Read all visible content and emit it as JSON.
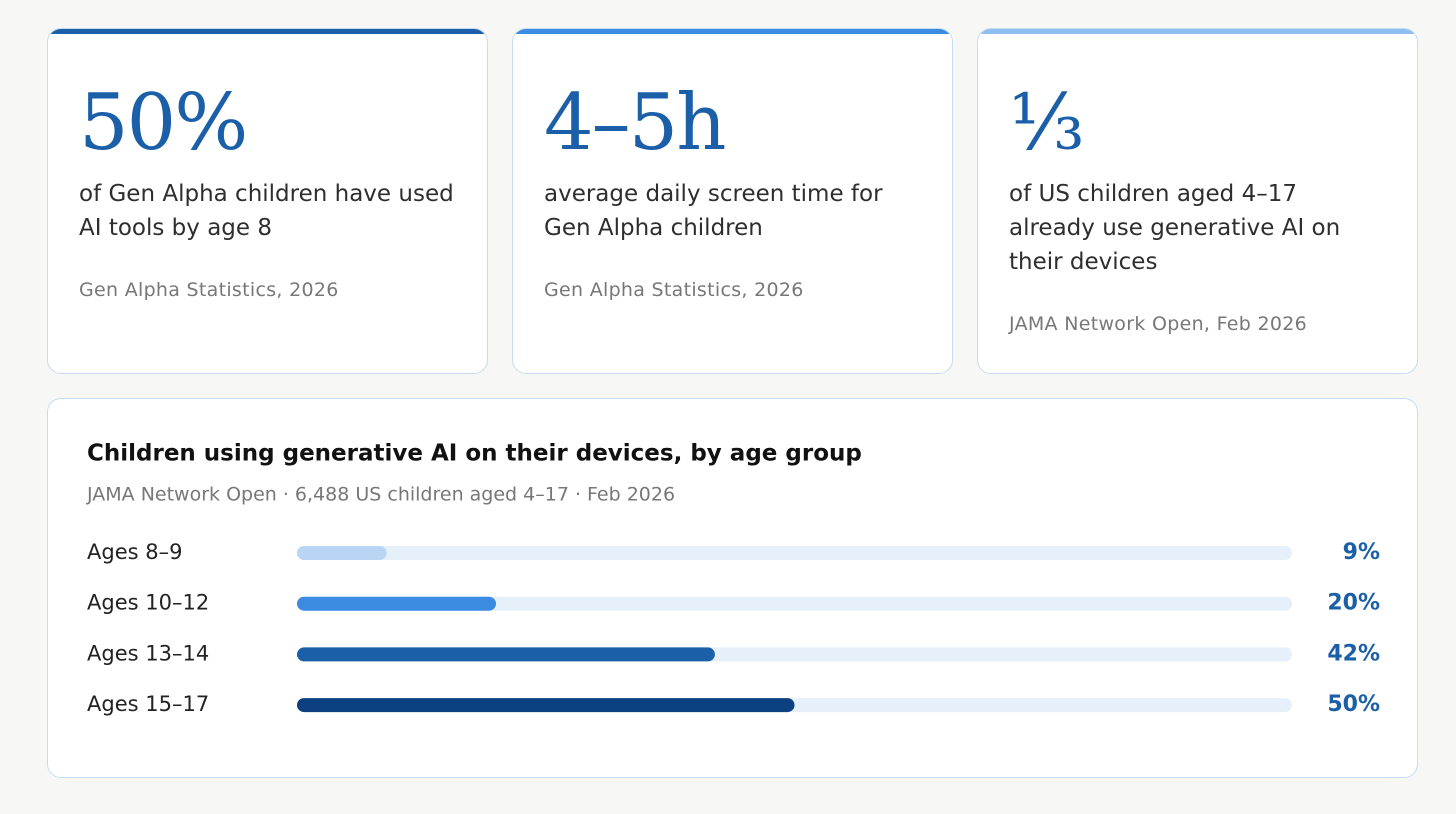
{
  "cards": [
    {
      "value": "50%",
      "text": "of Gen Alpha children have used AI tools by age 8",
      "source": "Gen Alpha Statistics, 2026"
    },
    {
      "value": "4–5h",
      "text": "average daily screen time for Gen Alpha children",
      "source": "Gen Alpha Statistics, 2026"
    },
    {
      "value": "⅓",
      "text": "of US children aged 4–17 already use generative AI on their devices",
      "source": "JAMA Network Open, Feb 2026"
    }
  ],
  "chart_data": {
    "type": "bar",
    "orientation": "horizontal",
    "title": "Children using generative AI on their devices, by age group",
    "subtitle": "JAMA Network Open · 6,488 US children aged 4–17 · Feb 2026",
    "categories": [
      "Ages 8–9",
      "Ages 10–12",
      "Ages 13–14",
      "Ages 15–17"
    ],
    "values": [
      9,
      20,
      42,
      50
    ],
    "value_labels": [
      "9%",
      "20%",
      "42%",
      "50%"
    ],
    "colors": [
      "#b9d5f3",
      "#3b8be0",
      "#1a5fa8",
      "#0c4080"
    ],
    "track_color": "#e6f0fb",
    "xlim": [
      0,
      100
    ]
  }
}
